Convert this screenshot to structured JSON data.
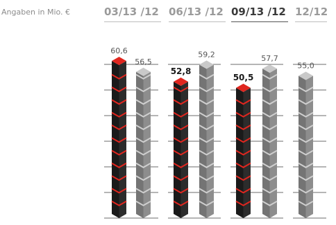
{
  "unit_label": "Angaben in Mio. €",
  "periods": [
    {
      "label": "03/13",
      "compare": "/12",
      "active": false
    },
    {
      "label": "06/13",
      "compare": "/12",
      "active": false
    },
    {
      "label": "09/13",
      "compare": "/12",
      "active": true
    },
    {
      "label": "12/12",
      "compare": "",
      "active": false
    }
  ],
  "colors": {
    "current_front": "#1a1a1a",
    "current_side": "#2c2c2c",
    "current_top": "#e0261f",
    "current_ribbon": "#e0261f",
    "prior_front": "#747474",
    "prior_side": "#8d8d8d",
    "prior_top": "#c9c9c9",
    "prior_ribbon": "#cfcfcf",
    "gridline": "#6b6b6b"
  },
  "chart_data": {
    "type": "bar",
    "categories": [
      "03/13 /12",
      "06/13 /12",
      "09/13 /12",
      "12/12"
    ],
    "series": [
      {
        "values": [
          60.6,
          52.8,
          50.5,
          null
        ]
      },
      {
        "values": [
          56.5,
          59.2,
          57.7,
          55.0
        ]
      }
    ],
    "value_labels": [
      [
        "60,6",
        "52,8",
        "50,5",
        ""
      ],
      [
        "56,5",
        "59,2",
        "57,7",
        "55,0"
      ]
    ],
    "ylim": [
      0,
      60.6
    ],
    "legend": "none",
    "grid": true
  }
}
